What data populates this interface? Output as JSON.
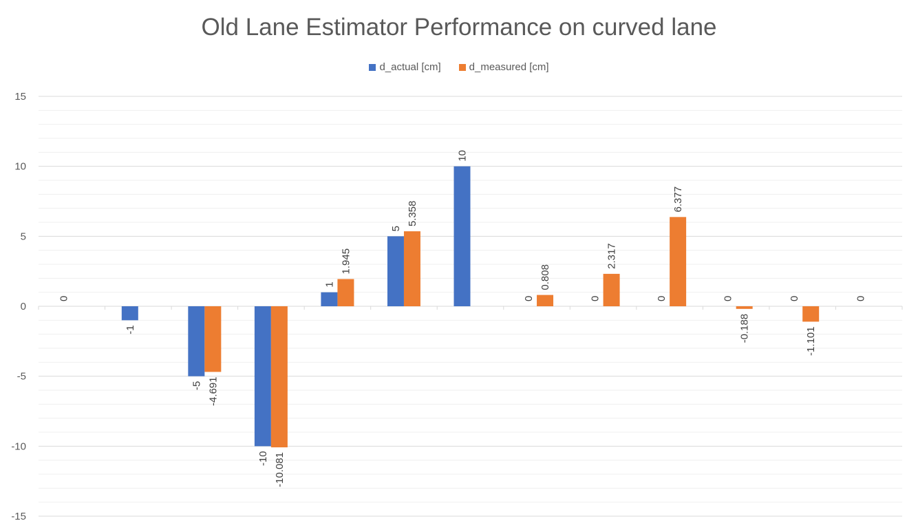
{
  "chart_data": {
    "type": "bar",
    "title": "Old Lane Estimator Performance on curved lane",
    "xlabel": "",
    "ylabel": "",
    "ylim": [
      -15,
      15
    ],
    "ytick_major": [
      15,
      10,
      5,
      0,
      -5,
      -10,
      -15
    ],
    "minor_gridlines": true,
    "legend_position": "top",
    "categories": [
      "",
      "",
      "",
      "",
      "",
      "",
      "",
      "",
      "",
      "",
      "",
      "",
      ""
    ],
    "series": [
      {
        "name": "d_actual [cm]",
        "color": "#4472C4",
        "values": [
          0,
          -1,
          -5,
          -10,
          1,
          5,
          10,
          0,
          0,
          0,
          0,
          0,
          0
        ],
        "labels": [
          "0",
          "-1",
          "-5",
          "-10",
          "1",
          "5",
          "10",
          "0",
          "0",
          "0",
          "0",
          "0",
          "0"
        ]
      },
      {
        "name": "d_measured [cm]",
        "color": "#ED7D31",
        "values": [
          null,
          null,
          -4.691,
          -10.081,
          1.945,
          5.358,
          null,
          0.808,
          2.317,
          6.377,
          -0.188,
          -1.101,
          null
        ],
        "labels": [
          null,
          null,
          "-4.691",
          "-10.081",
          "1.945",
          "5.358",
          null,
          "0.808",
          "2.317",
          "6.377",
          "-0.188",
          "-1.101",
          null
        ]
      }
    ]
  }
}
